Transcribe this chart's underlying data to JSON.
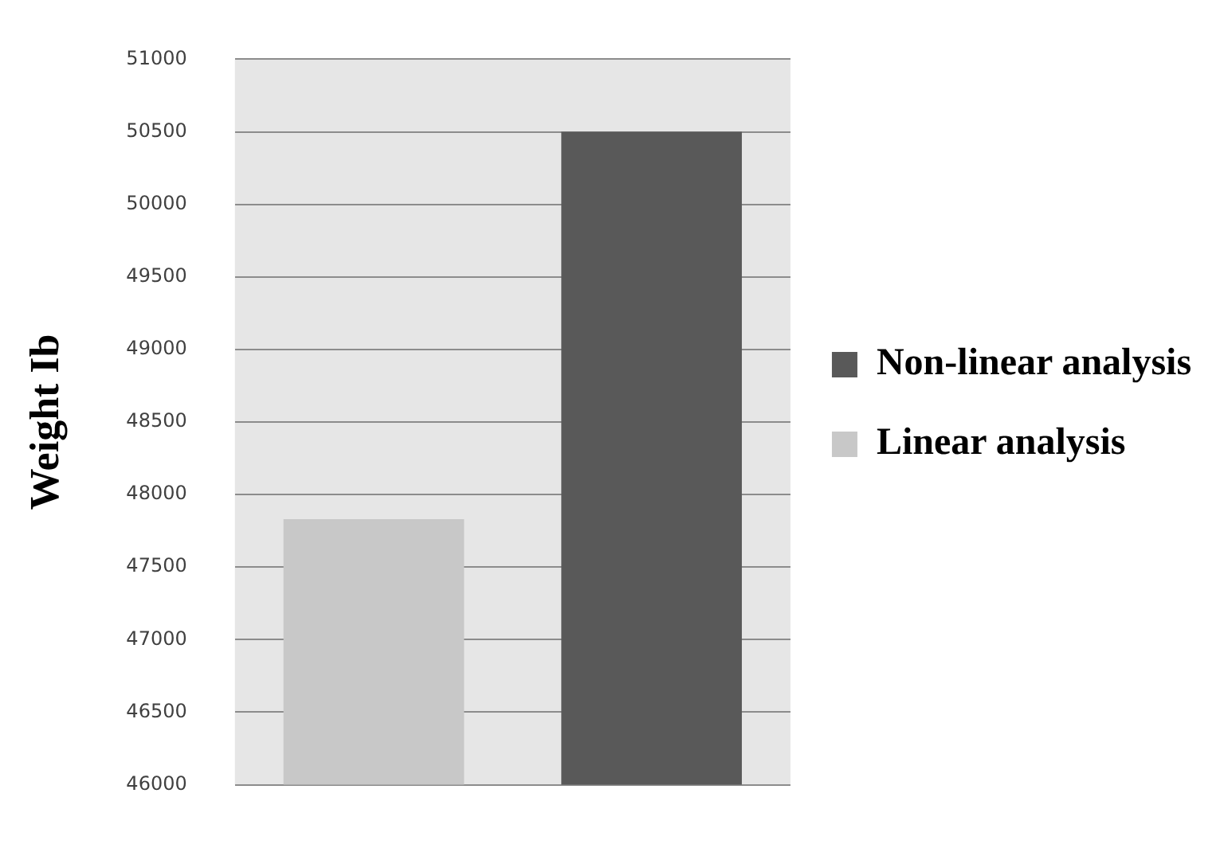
{
  "chart_data": {
    "type": "bar",
    "ylabel": "Weight Ib",
    "categories": [
      null,
      null
    ],
    "series": [
      {
        "name": "Non-linear analysis",
        "color": "#595959",
        "values": [
          null,
          50500
        ]
      },
      {
        "name": "Linear analysis",
        "color": "#c8c8c8",
        "values": [
          47830,
          null
        ]
      }
    ],
    "ylim": [
      46000,
      51000
    ],
    "yticks": [
      46000,
      46500,
      47000,
      47500,
      48000,
      48500,
      49000,
      49500,
      50000,
      50500,
      51000
    ],
    "grid": "y",
    "legend": "right",
    "tick_labels": "y"
  }
}
